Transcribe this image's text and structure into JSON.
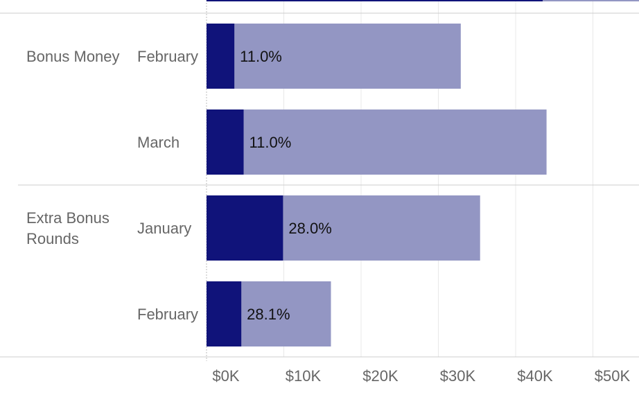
{
  "chart_data": {
    "type": "bar",
    "orientation": "horizontal",
    "stacked": true,
    "xlim": [
      0,
      56000
    ],
    "x_ticks": [
      0,
      10000,
      20000,
      30000,
      40000,
      50000
    ],
    "x_tick_labels": [
      "$0K",
      "$10K",
      "$20K",
      "$30K",
      "$40K",
      "$50K"
    ],
    "grid": true,
    "colors": {
      "inner": "#10137a",
      "outer": "#9396c3",
      "grid": "#e8e8e8",
      "separator": "#cccccc",
      "text": "#666666"
    },
    "top_partial_bar": {
      "inner": 43500,
      "total": 56000
    },
    "groups": [
      {
        "label": "Bonus Money",
        "label_lines": [
          "Bonus Money"
        ],
        "rows": [
          {
            "category": "February",
            "inner": 3600,
            "total": 32900,
            "label": "11.0%"
          },
          {
            "category": "March",
            "inner": 4800,
            "total": 44000,
            "label": "11.0%"
          }
        ]
      },
      {
        "label": "Extra Bonus Rounds",
        "label_lines": [
          "Extra Bonus",
          "Rounds"
        ],
        "rows": [
          {
            "category": "January",
            "inner": 9900,
            "total": 35400,
            "label": "28.0%"
          },
          {
            "category": "February",
            "inner": 4500,
            "total": 16100,
            "label": "28.1%"
          }
        ]
      }
    ]
  }
}
